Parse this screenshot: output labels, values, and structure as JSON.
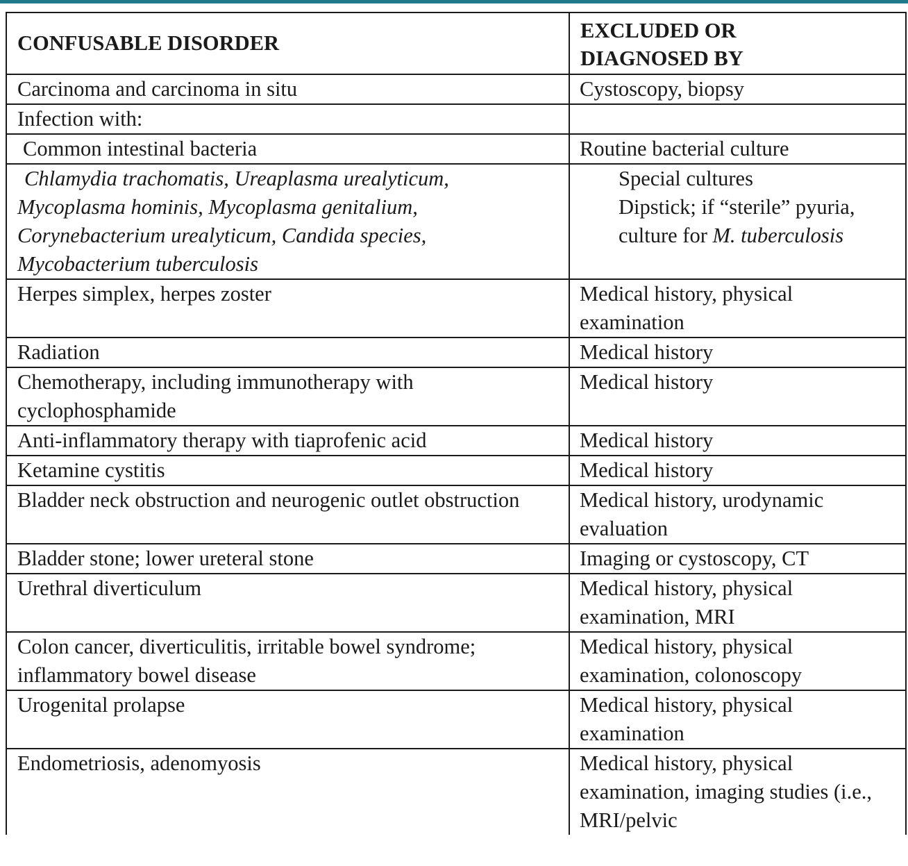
{
  "table": {
    "headers": {
      "disorder": "CONFUSABLE DISORDER",
      "excluded_line1": "EXCLUDED OR",
      "excluded_line2": "DIAGNOSED BY"
    },
    "rows": [
      {
        "disorder": "Carcinoma and carcinoma in situ",
        "excluded": "Cystoscopy, biopsy"
      },
      {
        "disorder": "Infection with:",
        "excluded": ""
      },
      {
        "disorder": "Common intestinal bacteria",
        "excluded": "Routine bacterial culture"
      },
      {
        "disorder_lines": [
          "Chlamydia trachomatis, Ureaplasma urealyticum,",
          "Mycoplasma hominis, Mycoplasma genitalium,",
          "Corynebacterium urealyticum, Candida species,",
          "Mycobacterium tuberculosis"
        ],
        "excluded_line1": "Special cultures",
        "excluded_line2": "Dipstick; if “sterile” pyuria,",
        "excluded_line3_prefix": "culture for ",
        "excluded_line3_italic": "M. tuberculosis"
      },
      {
        "disorder": "Herpes simplex, herpes zoster",
        "excluded": "Medical history, physical examination"
      },
      {
        "disorder": "Radiation",
        "excluded": "Medical history"
      },
      {
        "disorder": "Chemotherapy, including immunotherapy with cyclophosphamide",
        "excluded": "Medical history"
      },
      {
        "disorder": "Anti-inflammatory therapy with tiaprofenic acid",
        "excluded": "Medical history"
      },
      {
        "disorder": "Ketamine cystitis",
        "excluded": "Medical history"
      },
      {
        "disorder": "Bladder neck obstruction and neurogenic outlet obstruction",
        "excluded": "Medical history, urodynamic evaluation"
      },
      {
        "disorder": "Bladder stone; lower ureteral stone",
        "excluded": "Imaging or cystoscopy, CT"
      },
      {
        "disorder": "Urethral diverticulum",
        "excluded": "Medical history, physical examination, MRI"
      },
      {
        "disorder": "Colon cancer, diverticulitis, irritable bowel syndrome; inflammatory bowel disease",
        "excluded": "Medical history, physical examination, colonoscopy"
      },
      {
        "disorder": "Urogenital prolapse",
        "excluded": "Medical history, physical examination"
      },
      {
        "disorder": "Endometriosis, adenomyosis",
        "excluded": "Medical history, physical examination, imaging studies (i.e., MRI/pelvic"
      }
    ]
  }
}
